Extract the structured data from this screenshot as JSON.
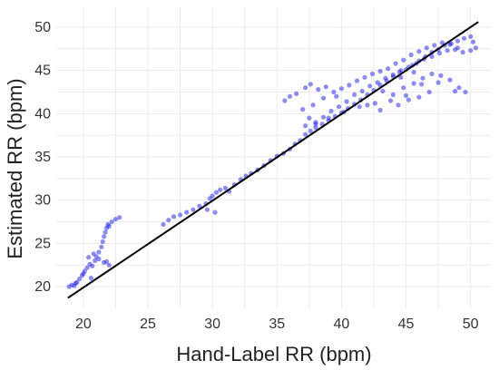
{
  "chart_data": {
    "type": "scatter",
    "title": "",
    "xlabel": "Hand-Label RR (bpm)",
    "ylabel": "Estimated RR (bpm)",
    "xlim": [
      17.9,
      51.5
    ],
    "ylim": [
      17.5,
      52.3
    ],
    "x_ticks": [
      20,
      25,
      30,
      35,
      40,
      45,
      50
    ],
    "y_ticks": [
      20,
      25,
      30,
      35,
      40,
      45,
      50
    ],
    "grid": true,
    "legend": "none",
    "point_color": "#1a1ae6",
    "line_color": "#000000",
    "identity_line": {
      "x": [
        18.8,
        50.6
      ],
      "y": [
        18.7,
        50.6
      ]
    },
    "series": [
      {
        "points": [
          [
            18.9,
            20.0
          ],
          [
            19.1,
            20.2
          ],
          [
            19.3,
            20.1
          ],
          [
            19.5,
            20.5
          ],
          [
            19.7,
            20.9
          ],
          [
            19.9,
            21.3
          ],
          [
            20.1,
            21.8
          ],
          [
            20.3,
            22.2
          ],
          [
            20.5,
            22.6
          ],
          [
            20.7,
            22.4
          ],
          [
            20.9,
            23.0
          ],
          [
            21.0,
            23.5
          ],
          [
            21.2,
            24.0
          ],
          [
            21.4,
            24.6
          ],
          [
            21.5,
            25.2
          ],
          [
            21.6,
            25.8
          ],
          [
            21.7,
            26.3
          ],
          [
            21.8,
            26.8
          ],
          [
            21.9,
            27.2
          ],
          [
            22.0,
            27.0
          ],
          [
            22.2,
            27.5
          ],
          [
            22.5,
            27.8
          ],
          [
            22.8,
            28.0
          ],
          [
            20.0,
            21.5
          ],
          [
            20.4,
            23.4
          ],
          [
            20.8,
            23.8
          ],
          [
            21.2,
            23.2
          ],
          [
            21.6,
            22.8
          ],
          [
            22.0,
            22.5
          ],
          [
            21.8,
            22.9
          ],
          [
            20.6,
            21.0
          ],
          [
            19.4,
            20.4
          ],
          [
            26.2,
            27.2
          ],
          [
            26.6,
            27.7
          ],
          [
            27.0,
            28.1
          ],
          [
            27.5,
            28.3
          ],
          [
            28.0,
            28.6
          ],
          [
            28.5,
            28.9
          ],
          [
            29.0,
            29.3
          ],
          [
            29.5,
            29.6
          ],
          [
            29.8,
            30.2
          ],
          [
            30.0,
            30.5
          ],
          [
            30.3,
            30.9
          ],
          [
            30.6,
            31.2
          ],
          [
            31.0,
            31.4
          ],
          [
            31.3,
            31.0
          ],
          [
            30.2,
            28.6
          ],
          [
            29.6,
            28.9
          ],
          [
            31.7,
            31.8
          ],
          [
            32.2,
            32.4
          ],
          [
            32.6,
            32.8
          ],
          [
            33.0,
            33.1
          ],
          [
            33.5,
            33.5
          ],
          [
            34.0,
            34.0
          ],
          [
            34.5,
            34.6
          ],
          [
            35.0,
            35.1
          ],
          [
            35.5,
            35.4
          ],
          [
            36.0,
            35.9
          ],
          [
            36.4,
            36.5
          ],
          [
            36.8,
            36.9
          ],
          [
            37.2,
            37.6
          ],
          [
            37.6,
            38.0
          ],
          [
            38.0,
            38.4
          ],
          [
            38.5,
            38.8
          ],
          [
            39.0,
            39.2
          ],
          [
            39.5,
            39.7
          ],
          [
            40.0,
            40.1
          ],
          [
            40.5,
            40.6
          ],
          [
            41.0,
            41.1
          ],
          [
            41.5,
            41.6
          ],
          [
            42.0,
            42.2
          ],
          [
            42.5,
            42.7
          ],
          [
            43.0,
            43.3
          ],
          [
            43.5,
            43.8
          ],
          [
            44.0,
            44.3
          ],
          [
            44.5,
            44.8
          ],
          [
            45.0,
            45.1
          ],
          [
            45.5,
            45.6
          ],
          [
            46.0,
            46.1
          ],
          [
            46.5,
            46.6
          ],
          [
            47.0,
            47.1
          ],
          [
            47.5,
            47.4
          ],
          [
            48.0,
            47.9
          ],
          [
            48.5,
            48.1
          ],
          [
            49.0,
            48.4
          ],
          [
            49.5,
            48.7
          ],
          [
            50.0,
            48.9
          ],
          [
            50.2,
            48.3
          ],
          [
            35.6,
            41.5
          ],
          [
            36.0,
            42.0
          ],
          [
            36.5,
            42.3
          ],
          [
            37.2,
            43.0
          ],
          [
            37.6,
            43.4
          ],
          [
            38.2,
            42.8
          ],
          [
            38.8,
            43.1
          ],
          [
            39.4,
            42.5
          ],
          [
            40.0,
            42.9
          ],
          [
            40.6,
            43.3
          ],
          [
            41.2,
            43.8
          ],
          [
            41.8,
            44.2
          ],
          [
            42.4,
            44.6
          ],
          [
            43.0,
            44.9
          ],
          [
            43.6,
            45.2
          ],
          [
            44.2,
            45.8
          ],
          [
            44.8,
            46.2
          ],
          [
            45.4,
            46.8
          ],
          [
            46.0,
            47.2
          ],
          [
            46.6,
            47.6
          ],
          [
            47.2,
            47.9
          ],
          [
            47.8,
            48.2
          ],
          [
            48.4,
            48.0
          ],
          [
            49.0,
            47.6
          ],
          [
            37.0,
            40.5
          ],
          [
            37.5,
            39.5
          ],
          [
            38.0,
            38.8
          ],
          [
            38.6,
            39.6
          ],
          [
            39.2,
            40.3
          ],
          [
            39.8,
            40.8
          ],
          [
            40.4,
            41.4
          ],
          [
            41.0,
            42.2
          ],
          [
            41.6,
            42.6
          ],
          [
            42.2,
            43.2
          ],
          [
            42.8,
            43.6
          ],
          [
            43.4,
            44.1
          ],
          [
            44.0,
            44.5
          ],
          [
            44.6,
            45.0
          ],
          [
            45.2,
            45.4
          ],
          [
            45.8,
            45.8
          ],
          [
            46.4,
            46.3
          ],
          [
            47.0,
            46.6
          ],
          [
            47.6,
            47.0
          ],
          [
            48.2,
            47.3
          ],
          [
            48.8,
            47.4
          ],
          [
            49.4,
            47.1
          ],
          [
            50.0,
            47.3
          ],
          [
            50.4,
            47.6
          ],
          [
            43.2,
            42.6
          ],
          [
            44.0,
            42.2
          ],
          [
            44.8,
            43.0
          ],
          [
            45.6,
            43.5
          ],
          [
            46.3,
            44.1
          ],
          [
            47.0,
            44.6
          ],
          [
            47.7,
            44.4
          ],
          [
            48.4,
            43.9
          ],
          [
            49.1,
            43.0
          ],
          [
            49.6,
            42.5
          ],
          [
            48.8,
            42.6
          ],
          [
            47.5,
            43.6
          ],
          [
            46.2,
            43.4
          ],
          [
            45.0,
            42.1
          ],
          [
            43.8,
            41.5
          ],
          [
            42.6,
            41.2
          ],
          [
            41.4,
            40.8
          ],
          [
            40.2,
            40.2
          ],
          [
            39.0,
            39.5
          ],
          [
            38.0,
            39.0
          ],
          [
            37.2,
            38.6
          ],
          [
            37.8,
            41.0
          ],
          [
            38.6,
            41.8
          ],
          [
            39.6,
            42.0
          ],
          [
            42.0,
            41.0
          ],
          [
            43.0,
            40.4
          ],
          [
            44.4,
            41.0
          ],
          [
            45.2,
            41.6
          ],
          [
            46.0,
            41.9
          ],
          [
            46.8,
            42.5
          ],
          [
            44.6,
            44.2
          ],
          [
            45.6,
            44.8
          ]
        ]
      }
    ]
  }
}
